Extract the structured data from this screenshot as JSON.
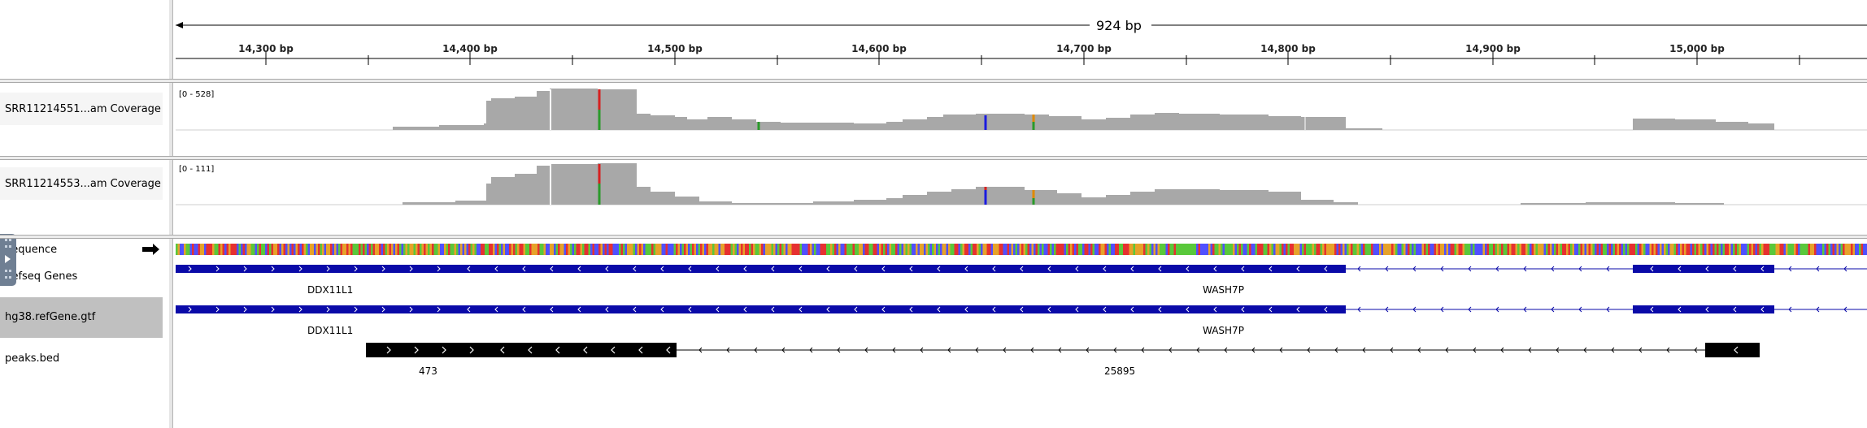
{
  "ruler": {
    "span_label": "924 bp",
    "ticks": [
      "14,300 bp",
      "14,400 bp",
      "14,500 bp",
      "14,600 bp",
      "14,700 bp",
      "14,800 bp",
      "14,900 bp",
      "15,000 bp"
    ]
  },
  "tracks": {
    "coverage1": {
      "name": "SRR11214551...am Coverage",
      "range": "[0 - 528]"
    },
    "coverage2": {
      "name": "SRR11214553...am Coverage",
      "range": "[0 - 111]"
    },
    "sequence": {
      "name": "Sequence"
    },
    "refseq": {
      "name": "Refseq Genes",
      "gene1": "DDX11L1",
      "gene2": "WASH7P"
    },
    "gtf": {
      "name": "hg38.refGene.gtf",
      "gene1": "DDX11L1",
      "gene2": "WASH7P"
    },
    "peaks": {
      "name": "peaks.bed",
      "peak1": "473",
      "peak2": "25895"
    }
  },
  "colors": {
    "coverage": "#a8a8a8",
    "gene": "#0a0aa8",
    "peak": "#000000",
    "selected_label_bg": "#c0c0c0"
  },
  "icons": {
    "sequence_strand": "right-arrow-icon",
    "side_toggle": "expand-panel-icon"
  }
}
